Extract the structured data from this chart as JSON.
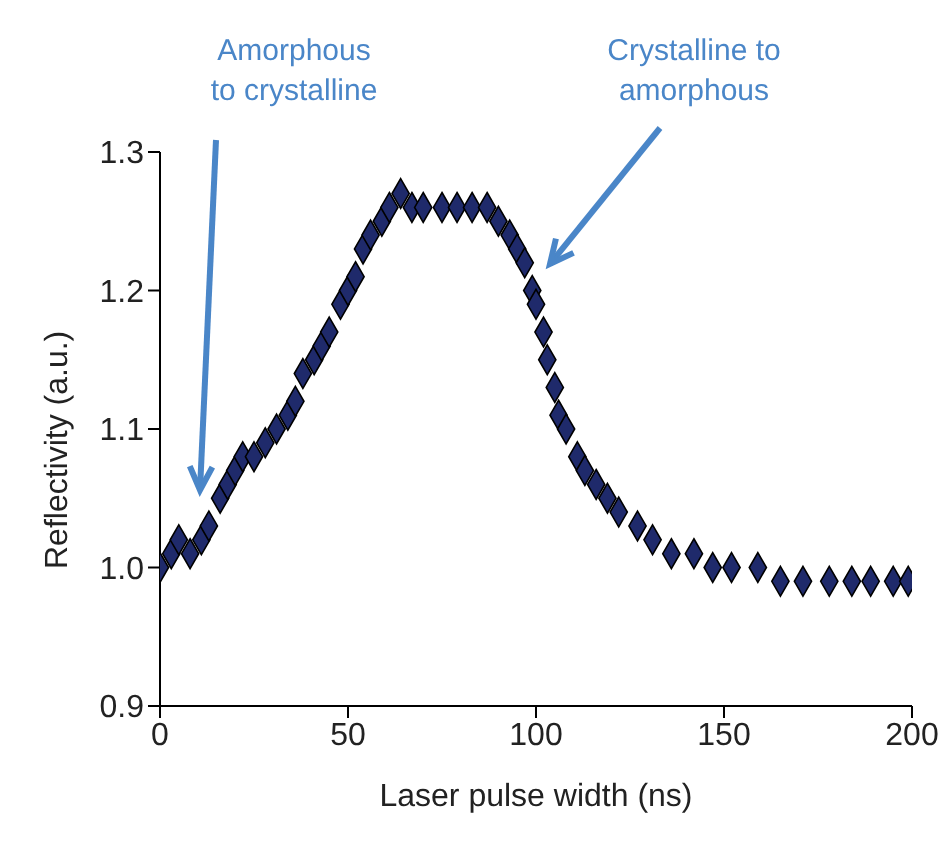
{
  "chart_data": {
    "type": "scatter",
    "xlabel": "Laser pulse width (ns)",
    "ylabel": "Reflectivity (a.u.)",
    "x": [
      0,
      3,
      5,
      8,
      11,
      13,
      16,
      18,
      20,
      22,
      25,
      28,
      31,
      34,
      36,
      38,
      41,
      43,
      45,
      48,
      50,
      52,
      54,
      56,
      59,
      61,
      64,
      67,
      70,
      75,
      79,
      83,
      87,
      90,
      93,
      95,
      97,
      99,
      100,
      102,
      103,
      105,
      106,
      108,
      111,
      113,
      116,
      119,
      122,
      127,
      131,
      136,
      142,
      147,
      152,
      159,
      165,
      171,
      178,
      184,
      189,
      195,
      199
    ],
    "series": [
      {
        "color": "#1f2a6b",
        "values": [
          1.0,
          1.01,
          1.02,
          1.01,
          1.02,
          1.03,
          1.05,
          1.06,
          1.07,
          1.08,
          1.08,
          1.09,
          1.1,
          1.11,
          1.12,
          1.14,
          1.15,
          1.16,
          1.17,
          1.19,
          1.2,
          1.21,
          1.23,
          1.24,
          1.25,
          1.26,
          1.27,
          1.26,
          1.26,
          1.26,
          1.26,
          1.26,
          1.26,
          1.25,
          1.24,
          1.23,
          1.22,
          1.2,
          1.19,
          1.17,
          1.15,
          1.13,
          1.11,
          1.1,
          1.08,
          1.07,
          1.06,
          1.05,
          1.04,
          1.03,
          1.02,
          1.01,
          1.01,
          1.0,
          1.0,
          1.0,
          0.99,
          0.99,
          0.99,
          0.99,
          0.99,
          0.99,
          0.99
        ]
      }
    ],
    "xlim": [
      0,
      200
    ],
    "xticks": [
      0,
      50,
      100,
      150,
      200
    ],
    "ylim": [
      0.9,
      1.3
    ],
    "yticks": [
      {
        "value": 0.9,
        "label": "0.9"
      },
      {
        "value": 1,
        "label": "1.0"
      },
      {
        "value": 1.1,
        "label": "1.1"
      },
      {
        "value": 1.2,
        "label": "1.2"
      },
      {
        "value": 1.3,
        "label": "1.3"
      }
    ],
    "marker": "diamond",
    "grid": false,
    "legend": false,
    "annotations": [
      "Amorphous\nto crystalline",
      "Crystalline to\namorphous"
    ]
  }
}
